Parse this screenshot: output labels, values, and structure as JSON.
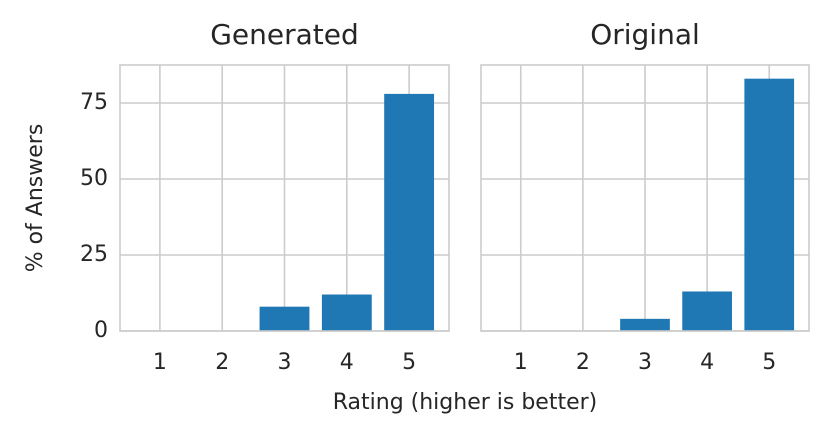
{
  "chart_data": {
    "type": "bar",
    "xlabel": "Rating (higher is better)",
    "ylabel": "% of Answers",
    "color": "#1f77b4",
    "grid": true,
    "xlim": [
      0.36,
      5.64
    ],
    "xticks": [
      1,
      2,
      3,
      4,
      5
    ],
    "ylim": [
      0,
      87.5
    ],
    "yticks": [
      0,
      25,
      50,
      75
    ],
    "panels": [
      {
        "title": "Generated",
        "x": [
          1,
          2,
          3,
          4,
          5
        ],
        "values": [
          0,
          0,
          8,
          12,
          78
        ]
      },
      {
        "title": "Original",
        "x": [
          1,
          2,
          3,
          4,
          5
        ],
        "values": [
          0,
          0,
          4,
          13,
          83
        ]
      }
    ]
  }
}
